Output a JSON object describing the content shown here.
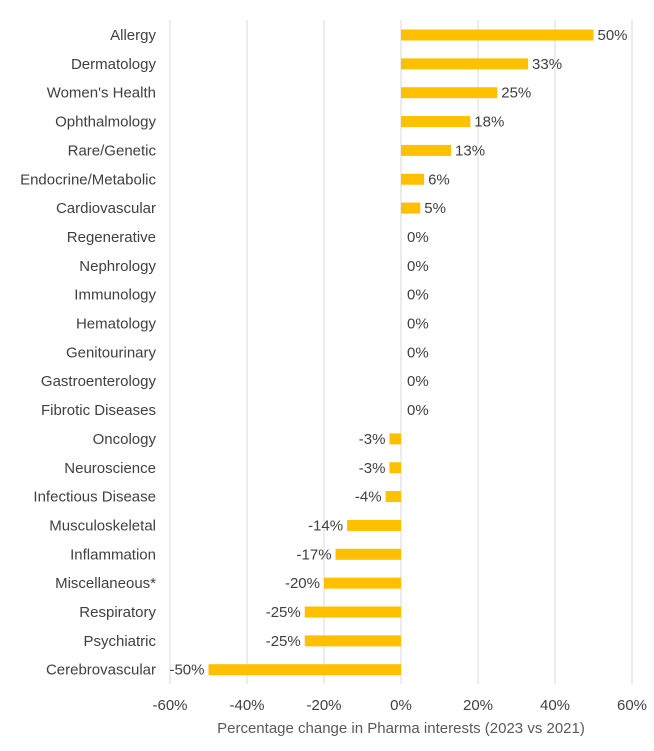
{
  "chart_data": {
    "type": "bar",
    "orientation": "horizontal",
    "categories": [
      "Allergy",
      "Dermatology",
      "Women's Health",
      "Ophthalmology",
      "Rare/Genetic",
      "Endocrine/Metabolic",
      "Cardiovascular",
      "Regenerative",
      "Nephrology",
      "Immunology",
      "Hematology",
      "Genitourinary",
      "Gastroenterology",
      "Fibrotic Diseases",
      "Oncology",
      "Neuroscience",
      "Infectious Disease",
      "Musculoskeletal",
      "Inflammation",
      "Miscellaneous*",
      "Respiratory",
      "Psychiatric",
      "Cerebrovascular"
    ],
    "values": [
      50,
      33,
      25,
      18,
      13,
      6,
      5,
      0,
      0,
      0,
      0,
      0,
      0,
      0,
      -3,
      -3,
      -4,
      -14,
      -17,
      -20,
      -25,
      -25,
      -50
    ],
    "data_labels": [
      "50%",
      "33%",
      "25%",
      "18%",
      "13%",
      "6%",
      "5%",
      "0%",
      "0%",
      "0%",
      "0%",
      "0%",
      "0%",
      "0%",
      "-3%",
      "-3%",
      "-4%",
      "-14%",
      "-17%",
      "-20%",
      "-25%",
      "-25%",
      "-50%"
    ],
    "x_ticks": [
      -60,
      -40,
      -20,
      0,
      20,
      40,
      60
    ],
    "x_tick_labels": [
      "-60%",
      "-40%",
      "-20%",
      "0%",
      "20%",
      "40%",
      "60%"
    ],
    "xlim": [
      -60,
      60
    ],
    "xlabel": "Percentage change in Pharma interests (2023 vs 2021)",
    "ylabel": "",
    "title": "",
    "grid": "vertical",
    "legend": "none",
    "bar_color": "#ffc000",
    "grid_color": "#d9d9d9",
    "text_color": "#404040"
  }
}
